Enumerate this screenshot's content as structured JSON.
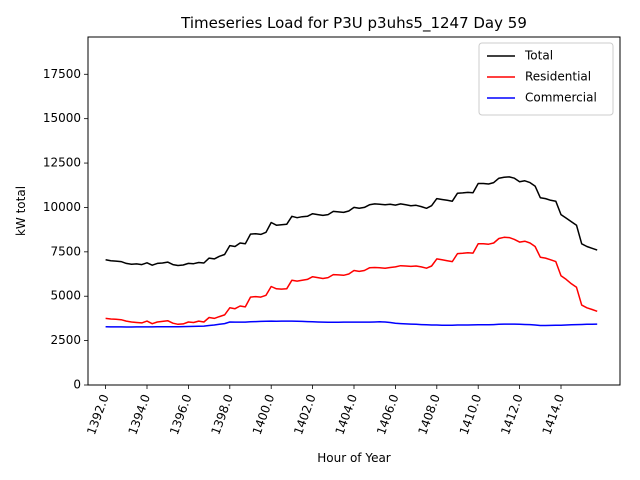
{
  "chart_data": {
    "type": "line",
    "title": "Timeseries Load for P3U p3uhs5_1247  Day 59",
    "xlabel": "Hour of Year",
    "ylabel": "kW total",
    "xlim": [
      1391.15,
      1416.85
    ],
    "ylim": [
      0,
      19600
    ],
    "xticks": [
      1392,
      1394,
      1396,
      1398,
      1400,
      1402,
      1404,
      1406,
      1408,
      1410,
      1412,
      1414
    ],
    "xtick_labels": [
      "1392.0",
      "1394.0",
      "1396.0",
      "1398.0",
      "1400.0",
      "1402.0",
      "1404.0",
      "1406.0",
      "1408.0",
      "1410.0",
      "1412.0",
      "1414.0"
    ],
    "yticks": [
      0,
      2500,
      5000,
      7500,
      10000,
      12500,
      15000,
      17500
    ],
    "ytick_labels": [
      "0",
      "2500",
      "5000",
      "7500",
      "10000",
      "12500",
      "15000",
      "17500"
    ],
    "legend_position": "top-right",
    "x": [
      1392.0,
      1392.25,
      1392.5,
      1392.75,
      1393.0,
      1393.25,
      1393.5,
      1393.75,
      1394.0,
      1394.25,
      1394.5,
      1394.75,
      1395.0,
      1395.25,
      1395.5,
      1395.75,
      1396.0,
      1396.25,
      1396.5,
      1396.75,
      1397.0,
      1397.25,
      1397.5,
      1397.75,
      1398.0,
      1398.25,
      1398.5,
      1398.75,
      1399.0,
      1399.25,
      1399.5,
      1399.75,
      1400.0,
      1400.25,
      1400.5,
      1400.75,
      1401.0,
      1401.25,
      1401.5,
      1401.75,
      1402.0,
      1402.25,
      1402.5,
      1402.75,
      1403.0,
      1403.25,
      1403.5,
      1403.75,
      1404.0,
      1404.25,
      1404.5,
      1404.75,
      1405.0,
      1405.25,
      1405.5,
      1405.75,
      1406.0,
      1406.25,
      1406.5,
      1406.75,
      1407.0,
      1407.25,
      1407.5,
      1407.75,
      1408.0,
      1408.25,
      1408.5,
      1408.75,
      1409.0,
      1409.25,
      1409.5,
      1409.75,
      1410.0,
      1410.25,
      1410.5,
      1410.75,
      1411.0,
      1411.25,
      1411.5,
      1411.75,
      1412.0,
      1412.25,
      1412.5,
      1412.75,
      1413.0,
      1413.25,
      1413.5,
      1413.75,
      1414.0,
      1414.25,
      1414.5,
      1414.75,
      1415.0,
      1415.25,
      1415.5,
      1415.75
    ],
    "series": [
      {
        "name": "Total",
        "color": "#000000",
        "values": [
          7050,
          7000,
          6980,
          6950,
          6850,
          6800,
          6820,
          6780,
          6880,
          6750,
          6850,
          6870,
          6920,
          6780,
          6730,
          6760,
          6850,
          6830,
          6900,
          6870,
          7150,
          7100,
          7250,
          7350,
          7850,
          7800,
          8000,
          7950,
          8500,
          8520,
          8480,
          8600,
          9150,
          9000,
          9020,
          9050,
          9500,
          9420,
          9480,
          9500,
          9650,
          9600,
          9550,
          9600,
          9780,
          9750,
          9720,
          9800,
          10000,
          9950,
          10000,
          10150,
          10200,
          10180,
          10150,
          10180,
          10130,
          10200,
          10150,
          10100,
          10120,
          10050,
          9950,
          10100,
          10500,
          10450,
          10400,
          10350,
          10800,
          10820,
          10850,
          10830,
          11350,
          11350,
          11320,
          11400,
          11650,
          11700,
          11720,
          11650,
          11450,
          11500,
          11400,
          11200,
          10550,
          10500,
          10400,
          10350,
          9600,
          9400,
          9200,
          9000,
          7950,
          7800,
          7700,
          7600
        ]
      },
      {
        "name": "Residential",
        "color": "#ff0000",
        "values": [
          3750,
          3720,
          3700,
          3680,
          3600,
          3550,
          3520,
          3500,
          3600,
          3450,
          3550,
          3580,
          3620,
          3480,
          3420,
          3440,
          3550,
          3520,
          3600,
          3550,
          3800,
          3750,
          3850,
          3950,
          4350,
          4300,
          4450,
          4400,
          4950,
          4980,
          4950,
          5050,
          5550,
          5420,
          5400,
          5420,
          5900,
          5850,
          5900,
          5950,
          6100,
          6050,
          6000,
          6050,
          6220,
          6200,
          6180,
          6250,
          6450,
          6400,
          6450,
          6600,
          6620,
          6600,
          6580,
          6620,
          6650,
          6720,
          6700,
          6680,
          6700,
          6650,
          6580,
          6700,
          7100,
          7050,
          7000,
          6950,
          7400,
          7420,
          7450,
          7430,
          7950,
          7950,
          7930,
          8000,
          8250,
          8320,
          8300,
          8200,
          8050,
          8100,
          8000,
          7800,
          7200,
          7150,
          7050,
          6950,
          6150,
          5950,
          5700,
          5500,
          4500,
          4350,
          4250,
          4150
        ]
      },
      {
        "name": "Commercial",
        "color": "#0000ff",
        "values": [
          3280,
          3275,
          3270,
          3270,
          3265,
          3265,
          3270,
          3270,
          3275,
          3275,
          3280,
          3280,
          3285,
          3285,
          3285,
          3290,
          3295,
          3300,
          3310,
          3320,
          3350,
          3380,
          3420,
          3460,
          3550,
          3540,
          3540,
          3545,
          3560,
          3570,
          3580,
          3590,
          3600,
          3590,
          3600,
          3600,
          3600,
          3590,
          3580,
          3570,
          3560,
          3550,
          3540,
          3530,
          3530,
          3530,
          3540,
          3540,
          3540,
          3540,
          3540,
          3545,
          3550,
          3560,
          3550,
          3520,
          3480,
          3460,
          3440,
          3430,
          3420,
          3400,
          3390,
          3380,
          3380,
          3370,
          3360,
          3370,
          3380,
          3380,
          3380,
          3385,
          3390,
          3390,
          3390,
          3400,
          3420,
          3430,
          3430,
          3430,
          3420,
          3410,
          3400,
          3380,
          3350,
          3350,
          3355,
          3360,
          3370,
          3380,
          3390,
          3400,
          3410,
          3420,
          3425,
          3430
        ]
      }
    ]
  }
}
